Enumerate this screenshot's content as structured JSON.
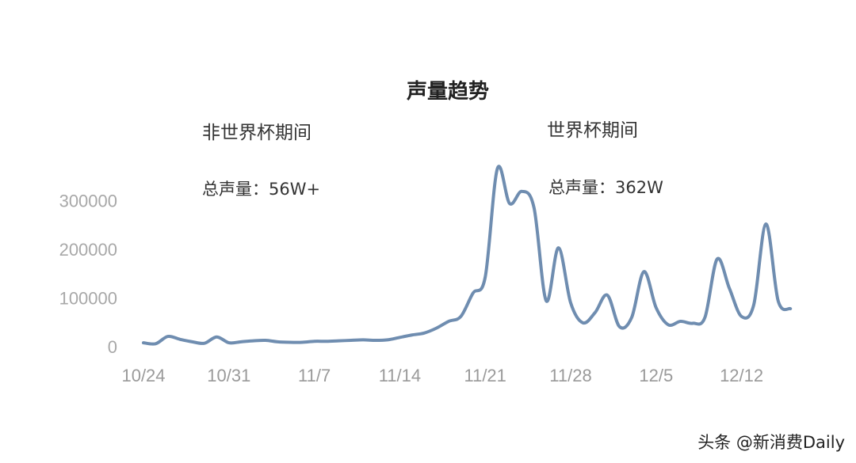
{
  "chart_data": {
    "type": "line",
    "title": "声量趋势",
    "xlabel": "",
    "ylabel": "",
    "ylim": [
      0,
      380000
    ],
    "yticks": [
      0,
      100000,
      200000,
      300000
    ],
    "xtick_labels": [
      "10/24",
      "10/31",
      "11/7",
      "11/14",
      "11/21",
      "11/28",
      "12/5",
      "12/12"
    ],
    "grid": false,
    "line_color": "#6f8db0",
    "x": [
      "10/24",
      "10/25",
      "10/26",
      "10/27",
      "10/28",
      "10/29",
      "10/30",
      "10/31",
      "11/1",
      "11/2",
      "11/3",
      "11/4",
      "11/5",
      "11/6",
      "11/7",
      "11/8",
      "11/9",
      "11/10",
      "11/11",
      "11/12",
      "11/13",
      "11/14",
      "11/15",
      "11/16",
      "11/17",
      "11/18",
      "11/19",
      "11/20",
      "11/21",
      "11/22",
      "11/23",
      "11/24",
      "11/25",
      "11/26",
      "11/27",
      "11/28",
      "11/29",
      "11/30",
      "12/1",
      "12/2",
      "12/3",
      "12/4",
      "12/5",
      "12/6",
      "12/7",
      "12/8",
      "12/9",
      "12/10",
      "12/11",
      "12/12",
      "12/13",
      "12/14",
      "12/15",
      "12/16"
    ],
    "values": [
      8000,
      6000,
      21000,
      15000,
      10000,
      7000,
      20000,
      8000,
      10000,
      12000,
      13000,
      10000,
      9000,
      9000,
      11000,
      11000,
      12000,
      13000,
      14000,
      13000,
      14000,
      19000,
      24000,
      28000,
      38000,
      52000,
      62000,
      110000,
      143000,
      366000,
      294000,
      319000,
      285000,
      94000,
      203000,
      90000,
      49000,
      70000,
      106000,
      41000,
      60000,
      154000,
      80000,
      45000,
      52000,
      48000,
      60000,
      180000,
      120000,
      62000,
      86000,
      252000,
      94000,
      78000
    ],
    "annotations": [
      {
        "period": "非世界杯期间",
        "total": "总声量：56W+"
      },
      {
        "period": "世界杯期间",
        "total": "总声量：362W"
      }
    ]
  },
  "watermark": "头条 @新消费Daily"
}
